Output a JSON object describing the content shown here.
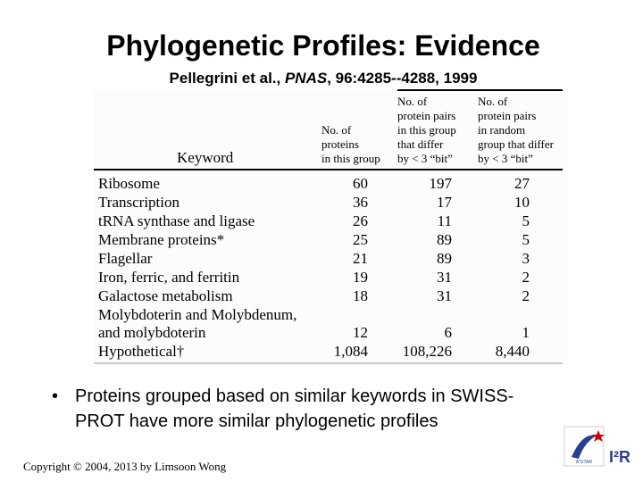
{
  "header": {
    "title": "Phylogenetic Profiles: Evidence",
    "subtitle": {
      "authors": "Pellegrini et al., ",
      "journal": "PNAS",
      "rest": ", 96:4285--4288, 1999"
    }
  },
  "table": {
    "columns": [
      [
        "Keyword"
      ],
      [
        "No. of",
        "proteins",
        "in this group"
      ],
      [
        "No. of",
        "protein pairs",
        "in this group",
        "that differ",
        "by < 3 “bit”"
      ],
      [
        "No. of",
        "protein pairs",
        "in random",
        "group that differ",
        " by < 3 “bit”"
      ]
    ],
    "rows": [
      [
        [
          "Ribosome"
        ],
        "60",
        "197",
        "27"
      ],
      [
        [
          "Transcription"
        ],
        "36",
        "17",
        "10"
      ],
      [
        [
          "tRNA synthase and ligase"
        ],
        "26",
        "11",
        "5"
      ],
      [
        [
          "Membrane proteins*"
        ],
        "25",
        "89",
        "5"
      ],
      [
        [
          "Flagellar"
        ],
        "21",
        "89",
        "3"
      ],
      [
        [
          "Iron, ferric, and ferritin"
        ],
        "19",
        "31",
        "2"
      ],
      [
        [
          "Galactose metabolism"
        ],
        "18",
        "31",
        "2"
      ],
      [
        [
          "Molybdoterin and Molybdenum,",
          "  and molybdoterin"
        ],
        "12",
        "6",
        "1"
      ],
      [
        [
          "Hypothetical†"
        ],
        "1,084",
        "108,226",
        "8,440"
      ]
    ]
  },
  "bullets": [
    "Proteins grouped based on similar keywords in SWISS-",
    "PROT have more similar phylogenetic profiles"
  ],
  "footer": "Copyright © 2004, 2013 by Limsoon Wong",
  "logo": {
    "text": "I²R",
    "org": "A*STAR"
  }
}
